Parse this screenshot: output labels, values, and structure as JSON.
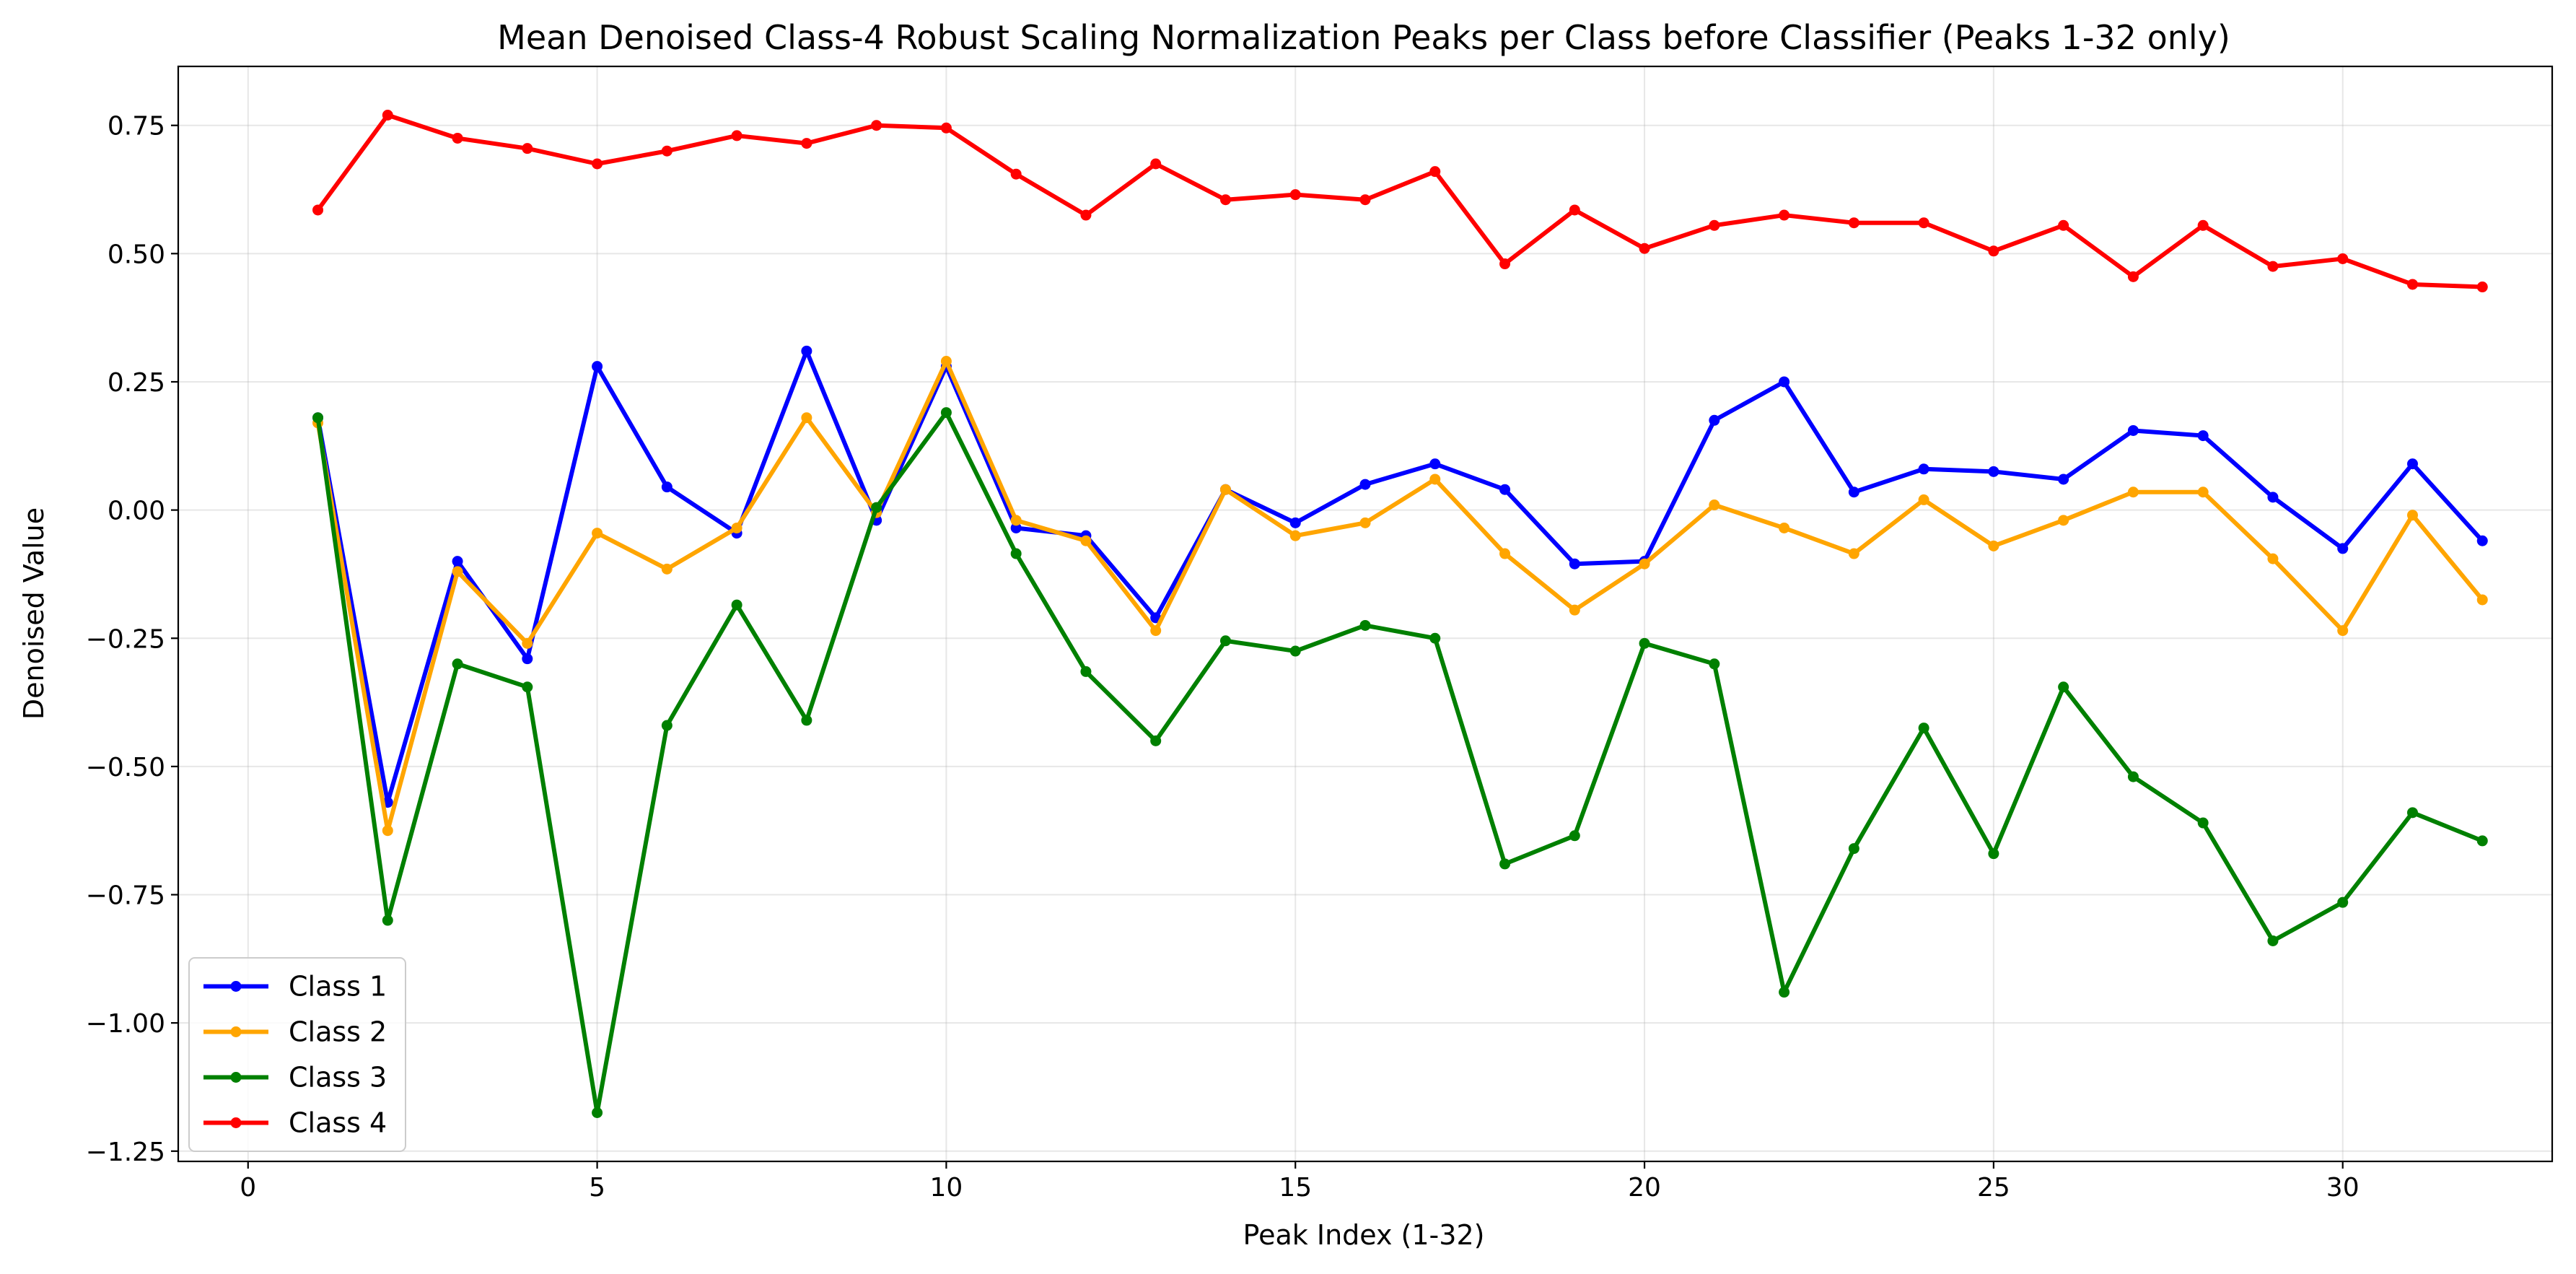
{
  "chart_data": {
    "type": "line",
    "title": "Mean Denoised Class-4 Robust Scaling Normalization Peaks per Class before Classifier (Peaks 1-32 only)",
    "xlabel": "Peak Index (1-32)",
    "ylabel": "Denoised Value",
    "xlim": [
      -1,
      33
    ],
    "ylim": [
      -1.27,
      0.865
    ],
    "xticks": [
      0,
      5,
      10,
      15,
      20,
      25,
      30
    ],
    "xtick_labels": [
      "0",
      "5",
      "10",
      "15",
      "20",
      "25",
      "30"
    ],
    "yticks": [
      -1.25,
      -1.0,
      -0.75,
      -0.5,
      -0.25,
      0.0,
      0.25,
      0.5,
      0.75
    ],
    "ytick_labels": [
      "−1.25",
      "−1.00",
      "−0.75",
      "−0.50",
      "−0.25",
      "0.00",
      "0.25",
      "0.50",
      "0.75"
    ],
    "grid": true,
    "legend_position": "lower-left",
    "x": [
      1,
      2,
      3,
      4,
      5,
      6,
      7,
      8,
      9,
      10,
      11,
      12,
      13,
      14,
      15,
      16,
      17,
      18,
      19,
      20,
      21,
      22,
      23,
      24,
      25,
      26,
      27,
      28,
      29,
      30,
      31,
      32
    ],
    "series": [
      {
        "name": "Class 1",
        "color": "#0000ff",
        "values": [
          0.18,
          -0.57,
          -0.1,
          -0.29,
          0.28,
          0.045,
          -0.045,
          0.31,
          -0.02,
          0.28,
          -0.035,
          -0.05,
          -0.21,
          0.04,
          -0.025,
          0.05,
          0.09,
          0.04,
          -0.105,
          -0.1,
          0.175,
          0.25,
          0.035,
          0.08,
          0.075,
          0.06,
          0.155,
          0.145,
          0.025,
          -0.075,
          0.09,
          -0.06
        ]
      },
      {
        "name": "Class 2",
        "color": "#ffa500",
        "values": [
          0.17,
          -0.625,
          -0.12,
          -0.26,
          -0.045,
          -0.115,
          -0.035,
          0.18,
          -0.005,
          0.29,
          -0.02,
          -0.06,
          -0.235,
          0.04,
          -0.05,
          -0.025,
          0.06,
          -0.085,
          -0.195,
          -0.105,
          0.01,
          -0.035,
          -0.085,
          0.02,
          -0.07,
          -0.02,
          0.035,
          0.035,
          -0.095,
          -0.235,
          -0.01,
          -0.175
        ]
      },
      {
        "name": "Class 3",
        "color": "#008000",
        "values": [
          0.18,
          -0.8,
          -0.3,
          -0.345,
          -1.175,
          -0.42,
          -0.185,
          -0.41,
          0.005,
          0.19,
          -0.085,
          -0.315,
          -0.45,
          -0.255,
          -0.275,
          -0.225,
          -0.25,
          -0.69,
          -0.635,
          -0.26,
          -0.3,
          -0.94,
          -0.66,
          -0.425,
          -0.67,
          -0.345,
          -0.52,
          -0.61,
          -0.84,
          -0.765,
          -0.59,
          -0.645
        ]
      },
      {
        "name": "Class 4",
        "color": "#ff0000",
        "values": [
          0.585,
          0.77,
          0.725,
          0.705,
          0.675,
          0.7,
          0.73,
          0.715,
          0.75,
          0.745,
          0.655,
          0.575,
          0.675,
          0.605,
          0.615,
          0.605,
          0.66,
          0.48,
          0.585,
          0.51,
          0.555,
          0.575,
          0.56,
          0.56,
          0.505,
          0.555,
          0.455,
          0.555,
          0.475,
          0.49,
          0.44,
          0.435
        ]
      }
    ]
  }
}
